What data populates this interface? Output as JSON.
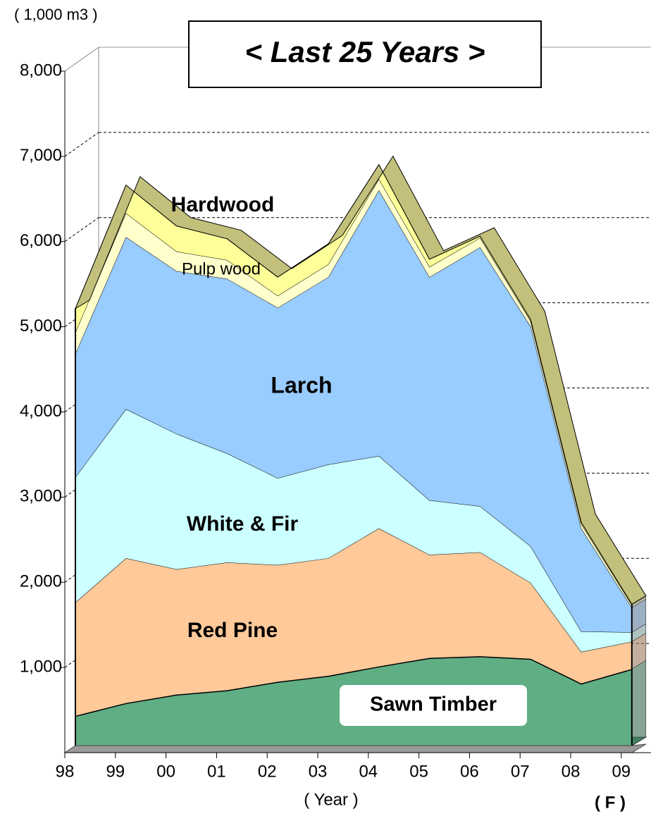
{
  "chart_data": {
    "type": "area",
    "title": "< Last 25 Years >",
    "y_label": "( 1,000 m3 )",
    "x_label": "( Year )",
    "annotation": "( F )",
    "categories": [
      "98",
      "99",
      "00",
      "01",
      "02",
      "03",
      "04",
      "05",
      "06",
      "07",
      "08",
      "09"
    ],
    "ylim": [
      0,
      8000
    ],
    "yticks": [
      {
        "value": 1000,
        "label": "1,000"
      },
      {
        "value": 2000,
        "label": "2,000"
      },
      {
        "value": 3000,
        "label": "3,000"
      },
      {
        "value": 4000,
        "label": "4,000"
      },
      {
        "value": 5000,
        "label": "5,000"
      },
      {
        "value": 6000,
        "label": "6,000"
      },
      {
        "value": 7000,
        "label": "7,000"
      },
      {
        "value": 8000,
        "label": "8,000"
      }
    ],
    "grid": true,
    "stacked": true,
    "series": [
      {
        "name": "Sawn Timber",
        "color": "#5fae84",
        "values": [
          350,
          500,
          600,
          650,
          750,
          820,
          930,
          1030,
          1050,
          1020,
          730,
          900
        ]
      },
      {
        "name": "Red Pine",
        "color": "#ffc999",
        "values": [
          1330,
          1700,
          1470,
          1500,
          1370,
          1380,
          1620,
          1210,
          1220,
          890,
          370,
          320
        ]
      },
      {
        "name": "White & Fir",
        "color": "#ccffff",
        "values": [
          1470,
          1750,
          1590,
          1280,
          1020,
          1100,
          850,
          640,
          540,
          430,
          240,
          110
        ]
      },
      {
        "name": "Larch",
        "color": "#99ccff",
        "values": [
          1450,
          2020,
          1910,
          2050,
          2000,
          2200,
          3120,
          2620,
          3040,
          2580,
          1210,
          290
        ]
      },
      {
        "name": "Pulp wood",
        "color": "#ffffcc",
        "values": [
          250,
          280,
          230,
          220,
          140,
          150,
          130,
          120,
          110,
          60,
          50,
          30
        ]
      },
      {
        "name": "Hardwood",
        "color": "#ffff99",
        "values": [
          280,
          330,
          300,
          250,
          220,
          240,
          170,
          90,
          20,
          20,
          20,
          10
        ]
      }
    ]
  }
}
